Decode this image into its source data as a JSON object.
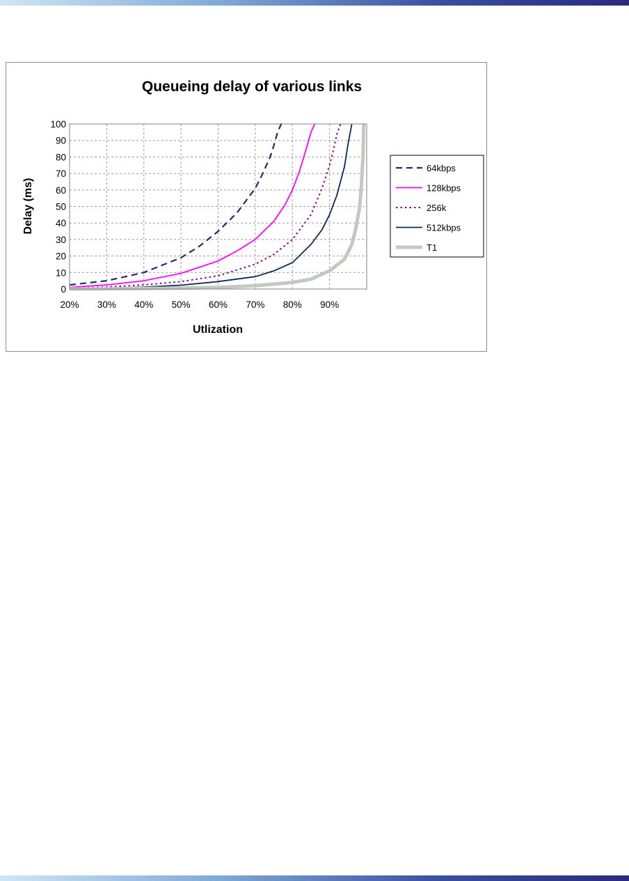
{
  "chart_data": {
    "type": "line",
    "title": "Queueing delay of various links",
    "xlabel": "Utlization",
    "ylabel": "Delay (ms)",
    "x_ticks": [
      "20%",
      "30%",
      "40%",
      "50%",
      "60%",
      "70%",
      "80%",
      "90%"
    ],
    "y_ticks": [
      "0",
      "10",
      "20",
      "30",
      "40",
      "50",
      "60",
      "70",
      "80",
      "90",
      "100"
    ],
    "xlim": [
      0.2,
      1.0
    ],
    "ylim": [
      0,
      100
    ],
    "grid": true,
    "legend_position": "right",
    "series": [
      {
        "name": "64kbps",
        "color": "#1f2a6b",
        "style": "dashed",
        "x": [
          0.2,
          0.3,
          0.4,
          0.5,
          0.55,
          0.6,
          0.65,
          0.7,
          0.72,
          0.74,
          0.75,
          0.76,
          0.77,
          0.78
        ],
        "y": [
          2.5,
          5,
          10,
          19,
          26,
          35,
          46,
          61,
          70,
          80,
          87,
          95,
          100,
          100
        ]
      },
      {
        "name": "128kbps",
        "color": "#ff00ff",
        "style": "solid",
        "x": [
          0.2,
          0.3,
          0.4,
          0.5,
          0.6,
          0.65,
          0.7,
          0.75,
          0.78,
          0.8,
          0.82,
          0.84,
          0.85,
          0.86
        ],
        "y": [
          1,
          2.5,
          5,
          9.5,
          17,
          23,
          30,
          41,
          51,
          60,
          72,
          87,
          95,
          100
        ]
      },
      {
        "name": "256k",
        "color": "#800080",
        "style": "dotted",
        "x": [
          0.2,
          0.3,
          0.4,
          0.5,
          0.6,
          0.7,
          0.75,
          0.8,
          0.85,
          0.88,
          0.9,
          0.91,
          0.92,
          0.93
        ],
        "y": [
          0.5,
          1.2,
          2.5,
          4.5,
          8,
          15,
          21,
          30,
          45,
          61,
          75,
          84,
          94,
          100
        ]
      },
      {
        "name": "512kbps",
        "color": "#0b2a55",
        "style": "solid",
        "x": [
          0.2,
          0.3,
          0.4,
          0.5,
          0.6,
          0.7,
          0.75,
          0.8,
          0.85,
          0.88,
          0.9,
          0.92,
          0.94,
          0.95,
          0.96
        ],
        "y": [
          0.3,
          0.6,
          1.2,
          2.3,
          4.5,
          7.5,
          11,
          16,
          27,
          36,
          45,
          57,
          74,
          88,
          100
        ]
      },
      {
        "name": "T1",
        "color": "#c3c8c3",
        "style": "thick",
        "x": [
          0.2,
          0.4,
          0.5,
          0.6,
          0.7,
          0.8,
          0.85,
          0.9,
          0.94,
          0.96,
          0.97,
          0.98,
          0.985,
          0.99,
          0.992
        ],
        "y": [
          0,
          0.3,
          0.6,
          1,
          2,
          4,
          6,
          11,
          18,
          27,
          36,
          48,
          60,
          80,
          100
        ]
      }
    ]
  }
}
